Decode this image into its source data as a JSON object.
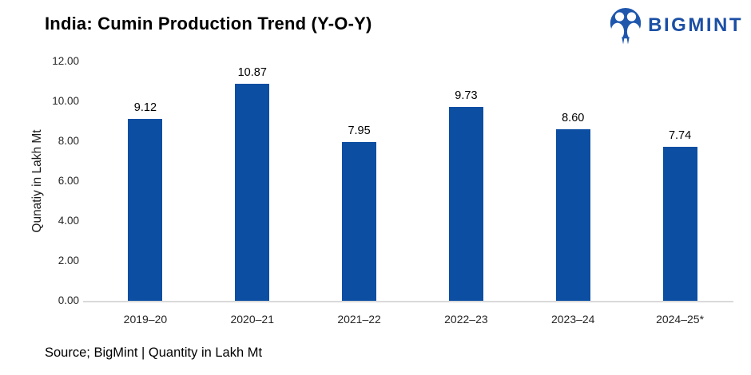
{
  "header": {
    "title": "India: Cumin Production Trend (Y-O-Y)",
    "logo": {
      "brand": "BIGMINT",
      "icon": "bigmint-people-icon",
      "brand_color": "#1b4fa5",
      "icon_color": "#1f57ad"
    }
  },
  "chart_data": {
    "type": "bar",
    "title": "India: Cumin Production Trend (Y-O-Y)",
    "categories": [
      "2019–20",
      "2020–21",
      "2021–22",
      "2022–23",
      "2023–24",
      "2024–25*"
    ],
    "values": [
      9.12,
      10.87,
      7.95,
      9.73,
      8.6,
      7.74
    ],
    "value_labels": [
      "9.12",
      "10.87",
      "7.95",
      "9.73",
      "8.60",
      "7.74"
    ],
    "xlabel": "",
    "ylabel": "Qunatiy in Lakh Mt",
    "ylim": [
      0,
      12
    ],
    "yticks": [
      "0.00",
      "2.00",
      "4.00",
      "6.00",
      "8.00",
      "10.00",
      "12.00"
    ],
    "grid": false,
    "legend": false,
    "bar_color": "#0b4ea2",
    "axis_line_color": "#d9d9d9"
  },
  "footer": {
    "source_note": "Source; BigMint | Quantity in Lakh Mt"
  }
}
